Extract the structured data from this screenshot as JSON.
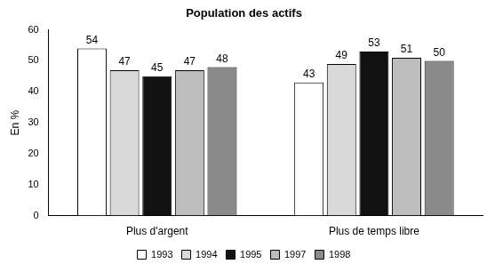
{
  "chart_data": {
    "type": "bar",
    "title": "Population des actifs",
    "y_label": "En %",
    "categories": [
      "Plus d'argent",
      "Plus de temps libre"
    ],
    "series": [
      {
        "name": "1993",
        "color": "#ffffff",
        "values": [
          54,
          43
        ]
      },
      {
        "name": "1994",
        "color": "#d9d9d9",
        "values": [
          47,
          49
        ]
      },
      {
        "name": "1995",
        "color": "#111111",
        "values": [
          45,
          53
        ]
      },
      {
        "name": "1997",
        "color": "#bdbdbd",
        "values": [
          47,
          51
        ]
      },
      {
        "name": "1998",
        "color": "#8a8a8a",
        "values": [
          48,
          50
        ]
      }
    ],
    "ylim": [
      0,
      60
    ],
    "yticks": [
      0,
      10,
      20,
      30,
      40,
      50,
      60
    ],
    "grid": false,
    "legend": "bottom",
    "data_labels": true
  }
}
